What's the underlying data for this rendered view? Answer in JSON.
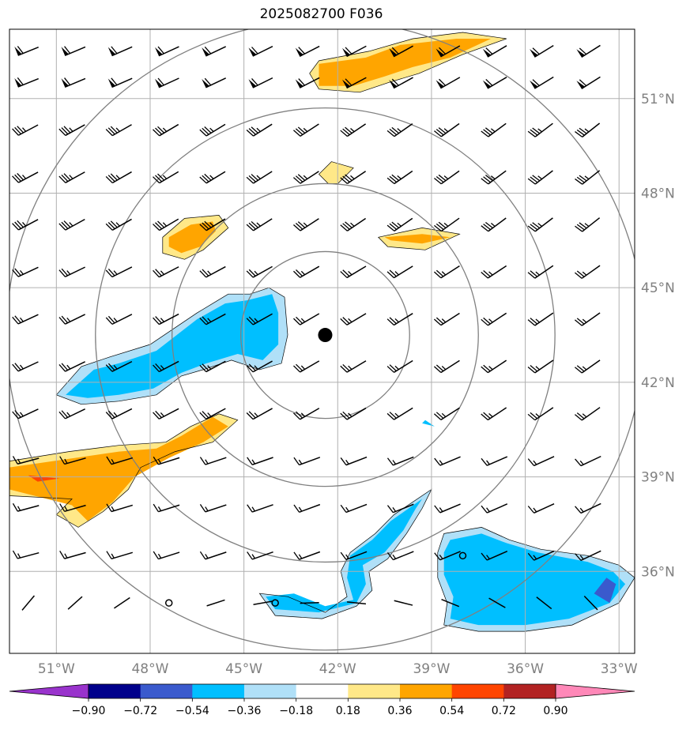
{
  "chart_data": {
    "type": "map-contour",
    "title": "2025082700 F036",
    "lon_range": [
      -52.5,
      -32.5
    ],
    "lat_range": [
      33.4,
      53.2
    ],
    "lon_ticks": [
      {
        "value": -51,
        "label": "51°W"
      },
      {
        "value": -48,
        "label": "48°W"
      },
      {
        "value": -45,
        "label": "45°W"
      },
      {
        "value": -42,
        "label": "42°W"
      },
      {
        "value": -39,
        "label": "39°W"
      },
      {
        "value": -36,
        "label": "36°W"
      },
      {
        "value": -33,
        "label": "33°W"
      }
    ],
    "lat_ticks": [
      {
        "value": 36,
        "label": "36°N"
      },
      {
        "value": 39,
        "label": "39°N"
      },
      {
        "value": 42,
        "label": "42°N"
      },
      {
        "value": 45,
        "label": "45°N"
      },
      {
        "value": 48,
        "label": "48°N"
      },
      {
        "value": 51,
        "label": "51°N"
      }
    ],
    "center": {
      "lon": -42.4,
      "lat": 43.5
    },
    "range_rings_deg": [
      2.7,
      4.9,
      7.35,
      10.2
    ],
    "colorbar": {
      "levels": [
        -0.9,
        -0.72,
        -0.54,
        -0.36,
        -0.18,
        0.18,
        0.36,
        0.54,
        0.72,
        0.9
      ],
      "labels": [
        "−0.90",
        "−0.72",
        "−0.54",
        "−0.36",
        "−0.18",
        "0.18",
        "0.36",
        "0.54",
        "0.72",
        "0.90"
      ],
      "colors": [
        "#9933cc",
        "#00008b",
        "#3a5acd",
        "#00bfff",
        "#b0e0f8",
        "#ffffff",
        "#ffe888",
        "#ffa500",
        "#ff4500",
        "#b22222",
        "#ff88b8"
      ]
    },
    "regions": [
      {
        "color": "#ffe888",
        "pts": [
          [
            -52.5,
            39.5
          ],
          [
            -50.6,
            39.8
          ],
          [
            -49,
            40
          ],
          [
            -47.5,
            40.1
          ],
          [
            -46.7,
            40.6
          ],
          [
            -45.8,
            41
          ],
          [
            -45.2,
            40.8
          ],
          [
            -46,
            40.1
          ],
          [
            -47.2,
            39.8
          ],
          [
            -48.3,
            39.3
          ],
          [
            -48.7,
            38.6
          ],
          [
            -49.5,
            37.9
          ],
          [
            -50.3,
            37.4
          ],
          [
            -51,
            37.8
          ],
          [
            -50.5,
            38.3
          ],
          [
            -52.5,
            38.4
          ]
        ]
      },
      {
        "color": "#ffa500",
        "pts": [
          [
            -52.5,
            39.3
          ],
          [
            -50.4,
            39.6
          ],
          [
            -49,
            39.8
          ],
          [
            -47.8,
            39.9
          ],
          [
            -47,
            40.3
          ],
          [
            -46,
            40.9
          ],
          [
            -45.5,
            40.6
          ],
          [
            -46.3,
            40.1
          ],
          [
            -47.4,
            39.6
          ],
          [
            -48.5,
            39
          ],
          [
            -49.2,
            38.2
          ],
          [
            -50,
            37.6
          ],
          [
            -50.5,
            38.1
          ],
          [
            -52.5,
            38.6
          ]
        ]
      },
      {
        "color": "#ff4500",
        "pts": [
          [
            -51.9,
            39.05
          ],
          [
            -50.9,
            38.95
          ],
          [
            -51.6,
            38.85
          ]
        ]
      },
      {
        "color": "#ffe888",
        "pts": [
          [
            -42.6,
            52.2
          ],
          [
            -41,
            52.5
          ],
          [
            -39.6,
            52.9
          ],
          [
            -38,
            53.1
          ],
          [
            -36.6,
            52.9
          ],
          [
            -38,
            52.4
          ],
          [
            -39.4,
            51.8
          ],
          [
            -40.4,
            51.5
          ],
          [
            -41.3,
            51.2
          ],
          [
            -42.6,
            51.3
          ],
          [
            -42.9,
            51.8
          ]
        ]
      },
      {
        "color": "#ffa500",
        "pts": [
          [
            -42.6,
            52.1
          ],
          [
            -41.1,
            52.3
          ],
          [
            -40,
            52.7
          ],
          [
            -38.2,
            52.9
          ],
          [
            -37.1,
            52.9
          ],
          [
            -38.4,
            52.3
          ],
          [
            -39.6,
            52
          ],
          [
            -40.5,
            51.7
          ],
          [
            -41.5,
            51.4
          ],
          [
            -42.6,
            51.4
          ]
        ]
      },
      {
        "color": "#ffe888",
        "pts": [
          [
            -47.6,
            46.6
          ],
          [
            -46.9,
            47.2
          ],
          [
            -45.8,
            47.3
          ],
          [
            -45.5,
            46.9
          ],
          [
            -46.3,
            46.2
          ],
          [
            -46.9,
            45.9
          ],
          [
            -47.6,
            46.1
          ]
        ]
      },
      {
        "color": "#ffa500",
        "pts": [
          [
            -47.4,
            46.6
          ],
          [
            -46.7,
            47
          ],
          [
            -46,
            47.1
          ],
          [
            -45.9,
            46.8
          ],
          [
            -46.4,
            46.3
          ],
          [
            -47,
            46.1
          ],
          [
            -47.4,
            46.3
          ]
        ]
      },
      {
        "color": "#ffe888",
        "pts": [
          [
            -42,
            48.3
          ],
          [
            -41.5,
            48.8
          ],
          [
            -42.2,
            49
          ],
          [
            -42.6,
            48.6
          ],
          [
            -42.3,
            48.3
          ]
        ]
      },
      {
        "color": "#ffe888",
        "pts": [
          [
            -40.7,
            46.6
          ],
          [
            -39.3,
            46.9
          ],
          [
            -38.1,
            46.7
          ],
          [
            -39.2,
            46.2
          ],
          [
            -40.4,
            46.3
          ]
        ]
      },
      {
        "color": "#ffa500",
        "pts": [
          [
            -40.5,
            46.6
          ],
          [
            -39.3,
            46.7
          ],
          [
            -38.4,
            46.6
          ],
          [
            -39.3,
            46.4
          ],
          [
            -40.3,
            46.5
          ]
        ]
      },
      {
        "color": "#b0e0f8",
        "pts": [
          [
            -51,
            41.6
          ],
          [
            -50.2,
            42.5
          ],
          [
            -49.3,
            42.8
          ],
          [
            -48,
            43.2
          ],
          [
            -46.5,
            44.2
          ],
          [
            -45.5,
            44.8
          ],
          [
            -44.8,
            44.8
          ],
          [
            -44.2,
            45
          ],
          [
            -43.7,
            44.7
          ],
          [
            -43.6,
            43.5
          ],
          [
            -43.8,
            42.6
          ],
          [
            -44.5,
            42.4
          ],
          [
            -45.4,
            42.7
          ],
          [
            -46.3,
            42.4
          ],
          [
            -47,
            42.2
          ],
          [
            -47.8,
            41.6
          ],
          [
            -49,
            41.4
          ],
          [
            -50.2,
            41.3
          ]
        ]
      },
      {
        "color": "#00bfff",
        "pts": [
          [
            -50.7,
            41.6
          ],
          [
            -49.8,
            42.4
          ],
          [
            -49,
            42.6
          ],
          [
            -47.8,
            43
          ],
          [
            -46.5,
            44
          ],
          [
            -45.6,
            44.5
          ],
          [
            -44.9,
            44.6
          ],
          [
            -44.1,
            44.8
          ],
          [
            -43.9,
            44.2
          ],
          [
            -43.9,
            43.2
          ],
          [
            -44.4,
            42.7
          ],
          [
            -45.2,
            42.9
          ],
          [
            -46.2,
            42.6
          ],
          [
            -47,
            42.3
          ],
          [
            -47.9,
            41.8
          ],
          [
            -49,
            41.6
          ],
          [
            -50,
            41.5
          ]
        ]
      },
      {
        "color": "#b0e0f8",
        "pts": [
          [
            -39,
            38.6
          ],
          [
            -40.2,
            37.8
          ],
          [
            -40.8,
            37.2
          ],
          [
            -41.6,
            36.6
          ],
          [
            -41.9,
            36
          ],
          [
            -41.7,
            35.2
          ],
          [
            -42.4,
            34.7
          ],
          [
            -43.6,
            35.2
          ],
          [
            -44.5,
            35.3
          ],
          [
            -44,
            34.6
          ],
          [
            -42.5,
            34.5
          ],
          [
            -41.4,
            34.9
          ],
          [
            -40.9,
            35.4
          ],
          [
            -41,
            36
          ],
          [
            -40.4,
            36.4
          ],
          [
            -39.8,
            37.2
          ],
          [
            -39.3,
            38
          ]
        ]
      },
      {
        "color": "#00bfff",
        "pts": [
          [
            -39.3,
            38.3
          ],
          [
            -40.3,
            37.6
          ],
          [
            -40.9,
            37
          ],
          [
            -41.6,
            36.5
          ],
          [
            -41.7,
            35.8
          ],
          [
            -41.5,
            35.1
          ],
          [
            -42.4,
            34.9
          ],
          [
            -43.4,
            35.3
          ],
          [
            -44.3,
            35.2
          ],
          [
            -44,
            34.8
          ],
          [
            -42.6,
            34.7
          ],
          [
            -41.4,
            35
          ],
          [
            -41.1,
            35.6
          ],
          [
            -41.2,
            36.2
          ],
          [
            -40.5,
            36.6
          ],
          [
            -39.9,
            37.3
          ],
          [
            -39.5,
            38
          ]
        ]
      },
      {
        "color": "#b0e0f8",
        "pts": [
          [
            -38.6,
            37.2
          ],
          [
            -37.4,
            37.4
          ],
          [
            -36.5,
            37
          ],
          [
            -35.5,
            36.7
          ],
          [
            -34,
            36.5
          ],
          [
            -33,
            36.2
          ],
          [
            -32.5,
            35.8
          ],
          [
            -33,
            35
          ],
          [
            -34.5,
            34.3
          ],
          [
            -36,
            34.1
          ],
          [
            -37.5,
            34.1
          ],
          [
            -38.6,
            34.3
          ],
          [
            -38.5,
            35
          ],
          [
            -38.8,
            35.8
          ],
          [
            -38.8,
            36.6
          ]
        ]
      },
      {
        "color": "#00bfff",
        "pts": [
          [
            -38.4,
            37
          ],
          [
            -37.4,
            37.2
          ],
          [
            -36.6,
            36.9
          ],
          [
            -35.6,
            36.6
          ],
          [
            -34,
            36.3
          ],
          [
            -33.2,
            36
          ],
          [
            -32.8,
            35.6
          ],
          [
            -33.3,
            35
          ],
          [
            -34.6,
            34.5
          ],
          [
            -36,
            34.3
          ],
          [
            -37.5,
            34.3
          ],
          [
            -38.4,
            34.5
          ],
          [
            -38.3,
            35.2
          ],
          [
            -38.6,
            35.9
          ],
          [
            -38.6,
            36.6
          ]
        ]
      },
      {
        "color": "#3a5acd",
        "pts": [
          [
            -33.8,
            35.3
          ],
          [
            -33.4,
            35.8
          ],
          [
            -33.1,
            35.6
          ],
          [
            -33.3,
            35
          ]
        ]
      },
      {
        "color": "#00bfff",
        "pts": [
          [
            -39.2,
            40.8
          ],
          [
            -38.9,
            40.6
          ],
          [
            -39.3,
            40.7
          ]
        ]
      }
    ],
    "barb_cols": [
      -51.9,
      -50.4,
      -48.9,
      -47.4,
      -45.9,
      -44.4,
      -42.9,
      -41.4,
      -39.9,
      -38.4,
      -36.9,
      -35.4,
      -33.9
    ],
    "barb_rows": [
      {
        "lat": 52.5,
        "type": "heavy"
      },
      {
        "lat": 51.5,
        "type": "heavy"
      },
      {
        "lat": 50.0,
        "type": "medium"
      },
      {
        "lat": 48.5,
        "type": "medium"
      },
      {
        "lat": 47.0,
        "type": "medium"
      },
      {
        "lat": 45.5,
        "type": "light"
      },
      {
        "lat": 44.0,
        "type": "light"
      },
      {
        "lat": 42.5,
        "type": "light"
      },
      {
        "lat": 41.0,
        "type": "light"
      },
      {
        "lat": 39.5,
        "type": "short"
      },
      {
        "lat": 38.0,
        "type": "short"
      },
      {
        "lat": 36.5,
        "type": "short"
      },
      {
        "lat": 35.0,
        "type": "calm"
      }
    ]
  }
}
